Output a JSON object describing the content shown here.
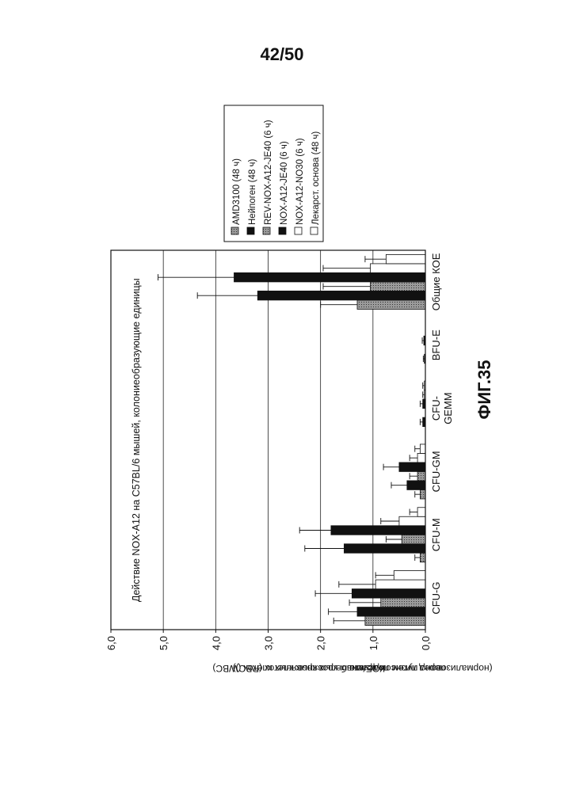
{
  "page_number": "42/50",
  "figure_label": "ФИГ.35",
  "chart_data": {
    "type": "bar",
    "orientation": "horizontal-rotated-page",
    "title": "Действие NOX-A12 на C57BL/6 мышей, колониеобразующие единицы",
    "ylabel": "КОЕ/мкл",
    "ylabel_line2": "(нормализовано путем подсчета белых кровяных клеток (WBC)",
    "ylabel_line3": "перед лизисом красных кровяных клеток (RBC))",
    "ylim": [
      0,
      6
    ],
    "ticks": [
      "0,0",
      "1,0",
      "2,0",
      "3,0",
      "4,0",
      "5,0",
      "6,0"
    ],
    "tick_values": [
      0,
      1,
      2,
      3,
      4,
      5,
      6
    ],
    "grid": true,
    "legend_position": "top-right",
    "categories": [
      "CFU-G",
      "CFU-M",
      "CFU-GM",
      "CFU-GEMM",
      "BFU-E",
      "Общие КОЕ"
    ],
    "category_lines": [
      [
        "CFU-G"
      ],
      [
        "CFU-M"
      ],
      [
        "CFU-GM"
      ],
      [
        "CFU-",
        "GEMM"
      ],
      [
        "BFU-E"
      ],
      [
        "Общие КОЕ"
      ]
    ],
    "series": [
      {
        "name": "AMD3100 (48 ч)",
        "fill": "#9a9a9a",
        "pattern": "dots",
        "values": [
          1.15,
          0.1,
          0.1,
          0.0,
          0.0,
          1.3
        ],
        "errors": [
          0.6,
          0.1,
          0.1,
          0.0,
          0.0,
          0.7
        ]
      },
      {
        "name": "Нейпоген (48 ч)",
        "fill": "#111111",
        "pattern": "solid",
        "values": [
          1.3,
          1.55,
          0.35,
          0.05,
          0.02,
          3.2
        ],
        "errors": [
          0.55,
          0.75,
          0.3,
          0.05,
          0.02,
          1.15
        ]
      },
      {
        "name": "REV-NOX-A12-JE40 (6 ч)",
        "fill": "#8a8a8a",
        "pattern": "dots",
        "values": [
          0.85,
          0.45,
          0.15,
          0.0,
          0.0,
          1.05
        ],
        "errors": [
          0.6,
          0.3,
          0.15,
          0.0,
          0.0,
          0.9
        ]
      },
      {
        "name": "NOX-A12-JE40 (6 ч)",
        "fill": "#111111",
        "pattern": "solid",
        "values": [
          1.4,
          1.8,
          0.5,
          0.05,
          0.03,
          3.65
        ],
        "errors": [
          0.7,
          0.6,
          0.3,
          0.05,
          0.03,
          1.45
        ]
      },
      {
        "name": "NOX-A12-NO30 (6 ч)",
        "fill": "#ffffff",
        "pattern": "none",
        "values": [
          0.95,
          0.5,
          0.15,
          0.02,
          0.0,
          1.05
        ],
        "errors": [
          0.7,
          0.35,
          0.15,
          0.03,
          0.0,
          0.9
        ]
      },
      {
        "name": "Лекарст. основа (48 ч)",
        "fill": "#ffffff",
        "pattern": "none",
        "values": [
          0.6,
          0.15,
          0.1,
          0.02,
          0.0,
          0.75
        ],
        "errors": [
          0.35,
          0.15,
          0.1,
          0.03,
          0.0,
          0.4
        ]
      }
    ]
  }
}
